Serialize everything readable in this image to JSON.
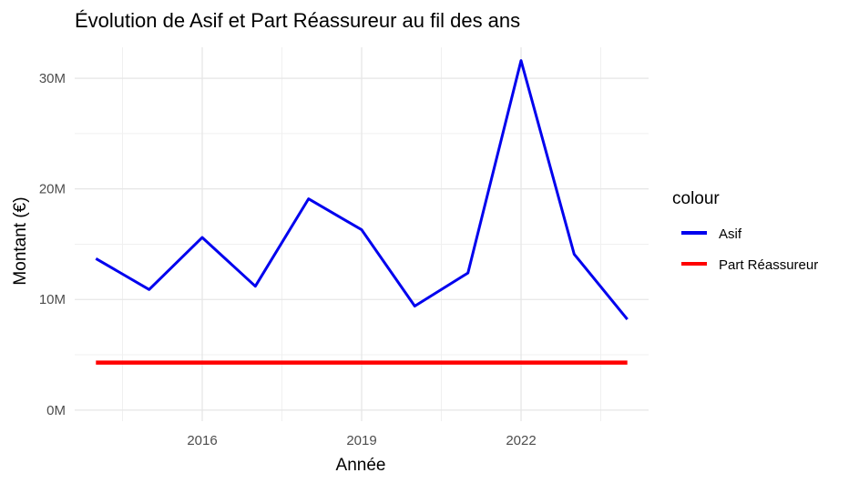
{
  "chart_data": {
    "type": "line",
    "title": "Évolution de Asif et Part Réassureur au fil des ans",
    "xlabel": "Année",
    "ylabel": "Montant (€)",
    "xlim": [
      2013.6,
      2024.4
    ],
    "ylim": [
      -1.0,
      32.8
    ],
    "x_ticks": [
      2016,
      2019,
      2022
    ],
    "x_tick_labels": [
      "2016",
      "2019",
      "2022"
    ],
    "y_ticks": [
      0,
      10,
      20,
      30
    ],
    "y_tick_labels": [
      "0M",
      "10M",
      "20M",
      "30M"
    ],
    "y_unit": "M€",
    "legend": {
      "title": "colour",
      "position": "right"
    },
    "series": [
      {
        "name": "Asif",
        "color": "#0000ee",
        "x": [
          2014,
          2015,
          2016,
          2017,
          2018,
          2019,
          2020,
          2021,
          2022,
          2023,
          2024
        ],
        "y": [
          13.7,
          10.9,
          15.6,
          11.2,
          19.1,
          16.3,
          9.4,
          12.4,
          31.6,
          14.1,
          8.2
        ]
      },
      {
        "name": "Part Réassureur",
        "color": "#ff0000",
        "x": [
          2014,
          2024
        ],
        "y": [
          4.3,
          4.3
        ]
      }
    ]
  }
}
